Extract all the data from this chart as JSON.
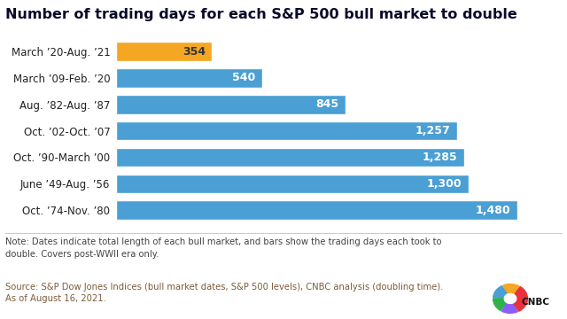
{
  "title": "Number of trading days for each S&P 500 bull market to double",
  "categories": [
    "Oct. ’74-Nov. ’80",
    "June ’49-Aug. ’56",
    "Oct. ’90-March ’00",
    "Oct. ’02-Oct. ’07",
    "Aug. ’82-Aug. ’87",
    "March ’09-Feb. ’20",
    "March ’20-Aug. ’21"
  ],
  "values": [
    1480,
    1300,
    1285,
    1257,
    845,
    540,
    354
  ],
  "bar_colors": [
    "#4a9fd4",
    "#4a9fd4",
    "#4a9fd4",
    "#4a9fd4",
    "#4a9fd4",
    "#4a9fd4",
    "#f5a623"
  ],
  "label_colors": [
    "#ffffff",
    "#ffffff",
    "#ffffff",
    "#ffffff",
    "#ffffff",
    "#ffffff",
    "#333333"
  ],
  "xlim": [
    0,
    1580
  ],
  "bg_color": "#ffffff",
  "note_text": "Note: Dates indicate total length of each bull market, and bars show the trading days each took to\ndouble. Covers post-WWII era only.",
  "source_text": "Source: S&P Dow Jones Indices (bull market dates, S&P 500 levels), CNBC analysis (doubling time).\nAs of August 16, 2021.",
  "title_fontsize": 11.5,
  "label_fontsize": 9,
  "tick_fontsize": 8.5,
  "note_fontsize": 7.2,
  "bar_label_format": [
    "1,480",
    "1,300",
    "1,285",
    "1,257",
    "845",
    "540",
    "354"
  ]
}
